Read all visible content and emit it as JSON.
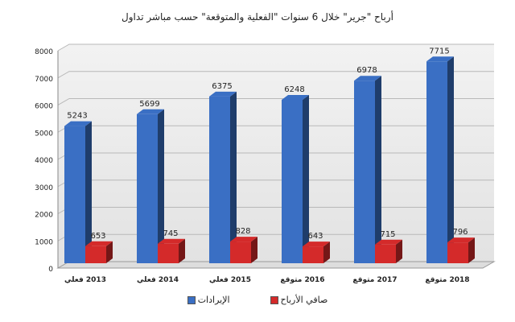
{
  "chart_data": {
    "type": "bar",
    "title": "أرباح \"جرير\" خلال 6 سنوات \"الفعلية والمتوقعة\" حسب مباشر تداول",
    "categories": [
      "2013 فعلي",
      "2014 فعلي",
      "2015 فعلي",
      "2016 متوقع",
      "2017 متوقع",
      "2018 متوقع"
    ],
    "series": [
      {
        "name": "الإيرادات",
        "color": "#3a6fc4",
        "values": [
          5243,
          5699,
          6375,
          6248,
          6978,
          7715
        ]
      },
      {
        "name": "صافي الأرباح",
        "color": "#d42a2a",
        "values": [
          653,
          745,
          828,
          643,
          715,
          796
        ]
      }
    ],
    "yticks": [
      0,
      1000,
      2000,
      3000,
      4000,
      5000,
      6000,
      7000,
      8000
    ],
    "ylim": [
      0,
      8000
    ],
    "grid": true,
    "legend": "bottom",
    "data_labels": true,
    "three_d": true
  }
}
